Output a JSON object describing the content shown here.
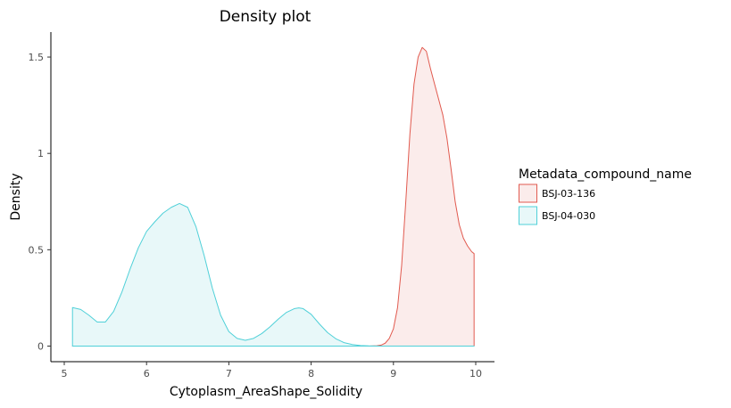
{
  "chart_data": {
    "type": "area",
    "title": "Density plot",
    "xlabel": "Cytoplasm_AreaShape_Solidity",
    "ylabel": "Density",
    "xlim": [
      4.9,
      10.2
    ],
    "ylim": [
      -0.08,
      1.63
    ],
    "x_ticks": [
      5,
      6,
      7,
      8,
      9,
      10
    ],
    "x_tick_labels": [
      "5",
      "6",
      "7",
      "8",
      "9",
      "10"
    ],
    "y_ticks": [
      0,
      0.5,
      1,
      1.5
    ],
    "y_tick_labels": [
      "0",
      "0.5",
      "1",
      "1.5"
    ],
    "grid": false,
    "legend": {
      "title": "Metadata_compound_name",
      "placement": "right"
    },
    "series": [
      {
        "name": "BSJ-03-136",
        "color": "#e15a4f",
        "fill": "#fbeceb",
        "x": [
          5.1,
          8.7,
          8.8,
          8.85,
          8.9,
          8.95,
          9.0,
          9.05,
          9.1,
          9.15,
          9.2,
          9.25,
          9.3,
          9.35,
          9.4,
          9.45,
          9.5,
          9.55,
          9.6,
          9.65,
          9.7,
          9.75,
          9.8,
          9.85,
          9.9,
          9.95,
          9.98
        ],
        "y": [
          0,
          0,
          0.002,
          0.005,
          0.015,
          0.04,
          0.09,
          0.2,
          0.42,
          0.75,
          1.1,
          1.36,
          1.5,
          1.55,
          1.53,
          1.44,
          1.36,
          1.28,
          1.2,
          1.08,
          0.92,
          0.75,
          0.63,
          0.56,
          0.52,
          0.49,
          0.48
        ]
      },
      {
        "name": "BSJ-04-030",
        "color": "#4fd0d8",
        "fill": "#e8f8f9",
        "x": [
          5.1,
          5.2,
          5.3,
          5.4,
          5.5,
          5.6,
          5.7,
          5.8,
          5.9,
          6.0,
          6.1,
          6.2,
          6.3,
          6.4,
          6.5,
          6.6,
          6.7,
          6.8,
          6.9,
          7.0,
          7.1,
          7.2,
          7.3,
          7.4,
          7.5,
          7.6,
          7.7,
          7.8,
          7.85,
          7.9,
          8.0,
          8.1,
          8.2,
          8.3,
          8.4,
          8.5,
          8.6,
          8.7,
          8.8,
          9.0,
          9.5,
          9.98
        ],
        "y": [
          0.2,
          0.19,
          0.16,
          0.125,
          0.125,
          0.18,
          0.28,
          0.4,
          0.51,
          0.595,
          0.645,
          0.69,
          0.72,
          0.74,
          0.72,
          0.62,
          0.47,
          0.3,
          0.16,
          0.075,
          0.04,
          0.03,
          0.04,
          0.065,
          0.1,
          0.14,
          0.175,
          0.195,
          0.198,
          0.195,
          0.165,
          0.115,
          0.07,
          0.038,
          0.018,
          0.008,
          0.003,
          0.001,
          0,
          0,
          0,
          0
        ]
      }
    ]
  }
}
